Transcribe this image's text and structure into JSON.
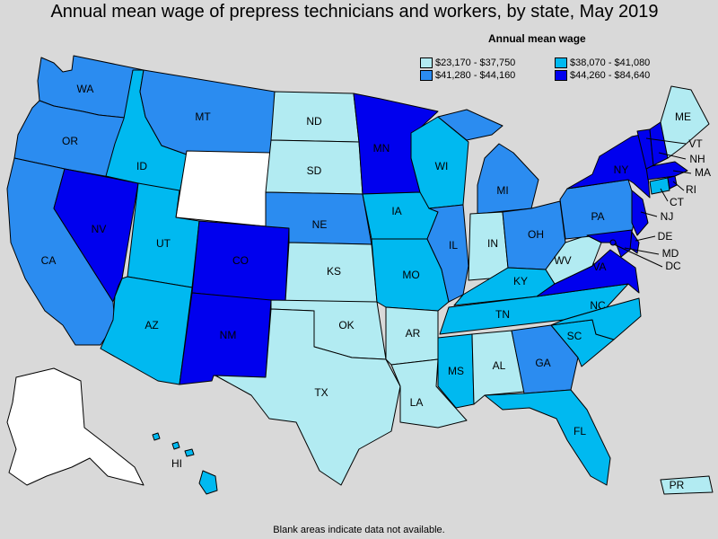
{
  "title": "Annual mean wage of prepress technicians and workers, by state, May 2019",
  "legend": {
    "title": "Annual mean wage",
    "items": [
      {
        "label": "$23,170 - $37,750",
        "color": "#b2ebf2"
      },
      {
        "label": "$38,070 - $41,080",
        "color": "#00b9f0"
      },
      {
        "label": "$41,280 - $44,160",
        "color": "#2b8cf0"
      },
      {
        "label": "$44,260 - $84,640",
        "color": "#0000ee"
      }
    ]
  },
  "footnote": "Blank areas indicate data not available.",
  "colors": {
    "no_data": "#ffffff",
    "background": "#d9d9d9"
  },
  "states": {
    "WA": 2,
    "OR": 2,
    "CA": 2,
    "NV": 3,
    "ID": 1,
    "MT": 2,
    "WY": null,
    "UT": 1,
    "AZ": 1,
    "CO": 3,
    "NM": 3,
    "ND": 0,
    "SD": 0,
    "NE": 2,
    "KS": 0,
    "OK": 0,
    "TX": 0,
    "MN": 3,
    "IA": 1,
    "MO": 1,
    "AR": 0,
    "LA": 0,
    "WI": 1,
    "IL": 2,
    "MI": 2,
    "IN": 0,
    "OH": 2,
    "KY": 1,
    "TN": 1,
    "MS": 1,
    "AL": 0,
    "GA": 2,
    "FL": 1,
    "SC": 1,
    "NC": 1,
    "VA": 3,
    "WV": 0,
    "PA": 2,
    "NY": 3,
    "VT": 3,
    "NH": 3,
    "ME": 0,
    "MA": 3,
    "RI": 3,
    "CT": 1,
    "NJ": 3,
    "DE": 3,
    "MD": 3,
    "DC": 3,
    "AK": null,
    "HI": 1,
    "PR": 0
  }
}
